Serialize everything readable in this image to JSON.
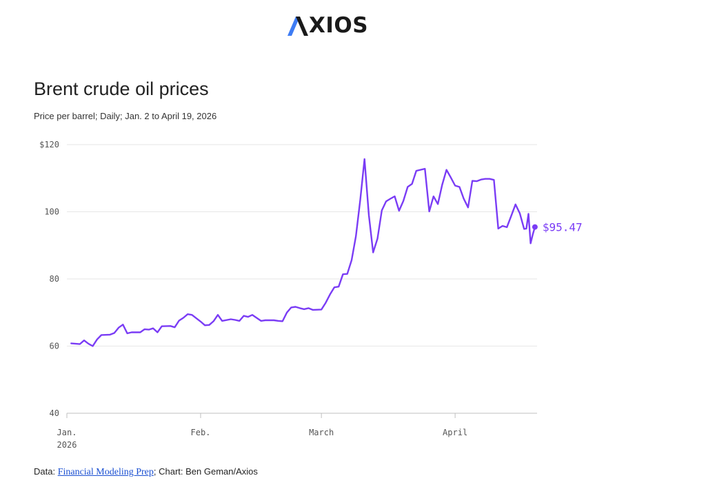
{
  "brand": {
    "logo_text": "XIOS",
    "logo_lettering": "AXIOS",
    "accent": "#3e7cf4"
  },
  "chart_data": {
    "type": "line",
    "title": "Brent crude oil prices",
    "subtitle": "Price per barrel; Daily; Jan. 2 to April 19, 2026",
    "ylim": [
      40,
      120
    ],
    "y_ticks": [
      "$120",
      "100",
      "80",
      "60",
      "40"
    ],
    "y_tick_values": [
      120,
      100,
      80,
      60,
      40
    ],
    "x_ticks": [
      {
        "label": "Jan.",
        "sublabel": "2026",
        "date": "2026-01-01"
      },
      {
        "label": "Feb.",
        "sublabel": "",
        "date": "2026-02-01"
      },
      {
        "label": "March",
        "sublabel": "",
        "date": "2026-03-01"
      },
      {
        "label": "April",
        "sublabel": "",
        "date": "2026-04-01"
      }
    ],
    "xlim": [
      "2026-01-01",
      "2026-04-20"
    ],
    "grid": true,
    "line_color": "#7a3cf5",
    "end_label": "$95.47",
    "series": [
      {
        "values": [
          [
            "2026-01-02",
            60.8
          ],
          [
            "2026-01-04",
            60.6
          ],
          [
            "2026-01-05",
            61.7
          ],
          [
            "2026-01-06",
            60.7
          ],
          [
            "2026-01-07",
            60.0
          ],
          [
            "2026-01-08",
            62.0
          ],
          [
            "2026-01-09",
            63.3
          ],
          [
            "2026-01-11",
            63.4
          ],
          [
            "2026-01-12",
            63.9
          ],
          [
            "2026-01-13",
            65.5
          ],
          [
            "2026-01-14",
            66.4
          ],
          [
            "2026-01-15",
            63.8
          ],
          [
            "2026-01-16",
            64.1
          ],
          [
            "2026-01-18",
            64.1
          ],
          [
            "2026-01-19",
            65.0
          ],
          [
            "2026-01-20",
            64.9
          ],
          [
            "2026-01-21",
            65.3
          ],
          [
            "2026-01-22",
            64.1
          ],
          [
            "2026-01-23",
            65.9
          ],
          [
            "2026-01-25",
            66.0
          ],
          [
            "2026-01-26",
            65.6
          ],
          [
            "2026-01-27",
            67.6
          ],
          [
            "2026-01-28",
            68.4
          ],
          [
            "2026-01-29",
            69.5
          ],
          [
            "2026-01-30",
            69.3
          ],
          [
            "2026-02-01",
            67.3
          ],
          [
            "2026-02-02",
            66.2
          ],
          [
            "2026-02-03",
            66.3
          ],
          [
            "2026-02-04",
            67.4
          ],
          [
            "2026-02-05",
            69.3
          ],
          [
            "2026-02-06",
            67.5
          ],
          [
            "2026-02-08",
            68.0
          ],
          [
            "2026-02-09",
            67.8
          ],
          [
            "2026-02-10",
            67.5
          ],
          [
            "2026-02-11",
            69.0
          ],
          [
            "2026-02-12",
            68.7
          ],
          [
            "2026-02-13",
            69.3
          ],
          [
            "2026-02-15",
            67.5
          ],
          [
            "2026-02-16",
            67.7
          ],
          [
            "2026-02-18",
            67.7
          ],
          [
            "2026-02-19",
            67.5
          ],
          [
            "2026-02-20",
            67.4
          ],
          [
            "2026-02-21",
            70.0
          ],
          [
            "2026-02-22",
            71.5
          ],
          [
            "2026-02-23",
            71.7
          ],
          [
            "2026-02-24",
            71.3
          ],
          [
            "2026-02-25",
            71.0
          ],
          [
            "2026-02-26",
            71.3
          ],
          [
            "2026-02-27",
            70.8
          ],
          [
            "2026-03-01",
            70.9
          ],
          [
            "2026-03-02",
            72.9
          ],
          [
            "2026-03-03",
            75.4
          ],
          [
            "2026-03-04",
            77.5
          ],
          [
            "2026-03-05",
            77.7
          ],
          [
            "2026-03-06",
            81.4
          ],
          [
            "2026-03-07",
            81.5
          ],
          [
            "2026-03-08",
            85.6
          ],
          [
            "2026-03-09",
            92.7
          ],
          [
            "2026-03-10",
            103.5
          ],
          [
            "2026-03-11",
            115.7
          ],
          [
            "2026-03-12",
            99.0
          ],
          [
            "2026-03-13",
            87.9
          ],
          [
            "2026-03-14",
            92.0
          ],
          [
            "2026-03-15",
            100.4
          ],
          [
            "2026-03-16",
            103.1
          ],
          [
            "2026-03-17",
            103.9
          ],
          [
            "2026-03-18",
            104.6
          ],
          [
            "2026-03-19",
            100.3
          ],
          [
            "2026-03-20",
            103.2
          ],
          [
            "2026-03-21",
            107.4
          ],
          [
            "2026-03-22",
            108.3
          ],
          [
            "2026-03-23",
            112.2
          ],
          [
            "2026-03-25",
            112.8
          ],
          [
            "2026-03-26",
            100.1
          ],
          [
            "2026-03-27",
            104.6
          ],
          [
            "2026-03-28",
            102.3
          ],
          [
            "2026-03-29",
            108.0
          ],
          [
            "2026-03-30",
            112.5
          ],
          [
            "2026-03-31",
            110.2
          ],
          [
            "2026-04-01",
            107.8
          ],
          [
            "2026-04-02",
            107.4
          ],
          [
            "2026-04-03",
            103.9
          ],
          [
            "2026-04-04",
            101.3
          ],
          [
            "2026-04-05",
            109.2
          ],
          [
            "2026-04-06",
            109.1
          ],
          [
            "2026-04-07",
            109.6
          ],
          [
            "2026-04-08",
            109.8
          ],
          [
            "2026-04-09",
            109.8
          ],
          [
            "2026-04-10",
            109.5
          ],
          [
            "2026-04-11",
            95.0
          ],
          [
            "2026-04-12",
            95.8
          ],
          [
            "2026-04-13",
            95.4
          ],
          [
            "2026-04-14",
            98.8
          ],
          [
            "2026-04-15",
            102.2
          ],
          [
            "2026-04-16",
            99.5
          ],
          [
            "2026-04-17",
            94.9
          ],
          [
            "2026-04-17T12:00",
            95.0
          ],
          [
            "2026-04-18",
            99.4
          ],
          [
            "2026-04-18T12:00",
            90.6
          ],
          [
            "2026-04-19",
            93.2
          ],
          [
            "2026-04-19T12:00",
            95.47
          ]
        ]
      }
    ]
  },
  "footer": {
    "prefix": "Data: ",
    "source_link": "Financial Modeling Prep",
    "suffix": "; Chart: Ben Geman/Axios"
  }
}
